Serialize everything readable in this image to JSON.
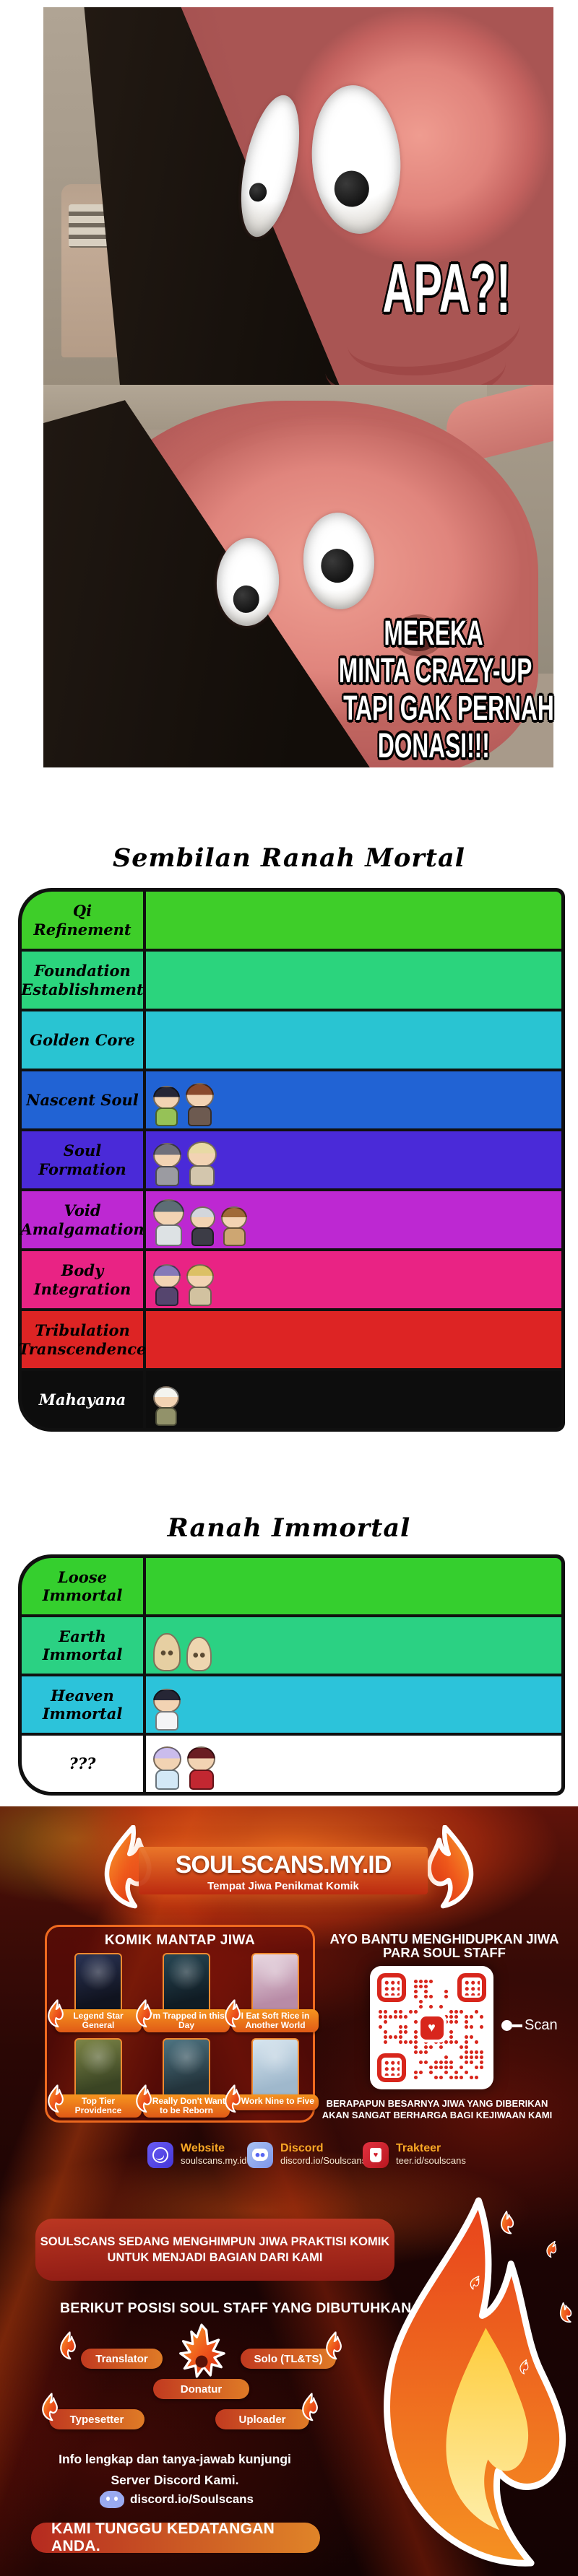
{
  "meme": {
    "caption_top": "APA?!",
    "caption_bottom_line1": "MEREKA",
    "caption_bottom_line2": "MINTA CRAZY-UP",
    "caption_bottom_line3": "TAPI GAK PERNAH",
    "caption_bottom_line4": "DONASI!!!"
  },
  "mortal_realms": {
    "title": "Sembilan Ranah Mortal",
    "rows": [
      {
        "label": "Qi Refinement",
        "bg": "#3ece29",
        "fg": "#000000",
        "chibis": []
      },
      {
        "label": "Foundation Establishment",
        "bg": "#2bd47d",
        "fg": "#000000",
        "chibis": []
      },
      {
        "label": "Golden Core",
        "bg": "#29c4d2",
        "fg": "#000000",
        "chibis": []
      },
      {
        "label": "Nascent Soul",
        "bg": "#2163d4",
        "fg": "#000000",
        "chibis": [
          {
            "h": "#262635",
            "b": "#96c257",
            "s": 66
          },
          {
            "h": "#8a4a2c",
            "b": "#6d5a50",
            "s": 70
          }
        ]
      },
      {
        "label": "Soul Formation",
        "bg": "#4a2ad8",
        "fg": "#000000",
        "chibis": [
          {
            "h": "#70707a",
            "b": "#9b9ba1",
            "s": 70
          },
          {
            "h": "#e8daa4",
            "b": "#d3c6ad",
            "s": 72
          }
        ]
      },
      {
        "label": "Void Amalgamation",
        "bg": "#bd28d2",
        "fg": "#000000",
        "chibis": [
          {
            "h": "#5d6d75",
            "b": "#dde2e4",
            "s": 76
          },
          {
            "h": "#d3d6dc",
            "b": "#3c3c46",
            "s": 64
          },
          {
            "h": "#a06a38",
            "b": "#cda672",
            "s": 64
          }
        ]
      },
      {
        "label": "Body Integration",
        "bg": "#e92384",
        "fg": "#000000",
        "chibis": [
          {
            "h": "#8579b8",
            "b": "#55456e",
            "s": 68
          },
          {
            "h": "#dcc066",
            "b": "#d2c2a0",
            "s": 68
          }
        ]
      },
      {
        "label": "Tribulation Transcendence",
        "bg": "#dd2424",
        "fg": "#000000",
        "chibis": []
      },
      {
        "label": "Mahayana",
        "bg": "#0d0d0d",
        "fg": "#ffffff",
        "chibis": [
          {
            "h": "#f4f4ef",
            "b": "#92926a",
            "s": 64
          }
        ]
      }
    ]
  },
  "immortal_realms": {
    "title": "Ranah Immortal",
    "rows": [
      {
        "label": "Loose Immortal",
        "bg": "#35cf2e",
        "fg": "#000000",
        "chibis": []
      },
      {
        "label": "Earth Immortal",
        "bg": "#2bd183",
        "fg": "#000000",
        "chibis": [
          {
            "h": "#e6cfa2",
            "b": "#e6cfa2",
            "s": 58
          },
          {
            "h": "#eed6b0",
            "b": "#eed6b0",
            "s": 52
          }
        ]
      },
      {
        "label": "Heaven Immortal",
        "bg": "#2cc3da",
        "fg": "#000000",
        "chibis": [
          {
            "h": "#262635",
            "b": "#f4f4f6",
            "s": 68
          }
        ]
      },
      {
        "label": "???",
        "bg": "#ffffff",
        "fg": "#000000",
        "chibis": [
          {
            "h": "#cabcec",
            "b": "#d3e8f6",
            "s": 70
          },
          {
            "h": "#6a1d22",
            "b": "#c22731",
            "s": 70
          }
        ]
      }
    ]
  },
  "promo": {
    "site_title": "SOULSCANS.MY.ID",
    "site_tagline": "Tempat Jiwa Penikmat Komik",
    "komik_heading": "KOMIK MANTAP JIWA",
    "comics": [
      {
        "title": "Legend Star General",
        "cover": [
          "#2a3354",
          "#10131f"
        ]
      },
      {
        "title": "I'm Trapped in this Day",
        "cover": [
          "#274754",
          "#101c24"
        ]
      },
      {
        "title": "I Eat Soft Rice in Another World",
        "cover": [
          "#e9d9e2",
          "#b88ba6"
        ]
      },
      {
        "title": "Top Tier Providence",
        "cover": [
          "#7c8547",
          "#3a4423"
        ]
      },
      {
        "title": "I Really Don't Want to be Reborn",
        "cover": [
          "#4e7482",
          "#23343c"
        ]
      },
      {
        "title": "I Work Nine to Five",
        "cover": [
          "#d8e6f0",
          "#9fb8cc"
        ]
      }
    ],
    "donation": {
      "heading_line1": "AYO BANTU MENGHIDUPKAN JIWA",
      "heading_line2": "PARA SOUL STAFF",
      "scan_label": "Scan",
      "note_line1": "BERAPAPUN BESARNYA JIWA YANG DIBERIKAN",
      "note_line2": "AKAN SANGAT BERHARGA BAGI KEJIWAAN KAMI"
    },
    "links": [
      {
        "name": "Website",
        "value": "soulscans.my.id",
        "icon": "website-icon"
      },
      {
        "name": "Discord",
        "value": "discord.io/Soulscans",
        "icon": "discord-icon"
      },
      {
        "name": "Trakteer",
        "value": "teer.id/soulscans",
        "icon": "trakteer-icon"
      }
    ],
    "recruitment": {
      "banner_line1": "SOULSCANS SEDANG MENGHIMPUN JIWA PRAKTISI KOMIK",
      "banner_line2": "UNTUK MENJADI BAGIAN DARI KAMI",
      "positions_heading": "BERIKUT POSISI SOUL STAFF YANG DIBUTUHKAN :",
      "positions": [
        "Translator",
        "Solo (TL&TS)",
        "Donatur",
        "Typesetter",
        "Uploader"
      ],
      "info_line1": "Info lengkap dan tanya-jawab kunjungi",
      "info_line2": "Server Discord Kami.",
      "discord_link": "discord.io/Soulscans",
      "closing": "KAMI TUNGGU KEDATANGAN ANDA."
    },
    "accent_orange": "#f9a825",
    "qr_color": "#d8261c"
  }
}
